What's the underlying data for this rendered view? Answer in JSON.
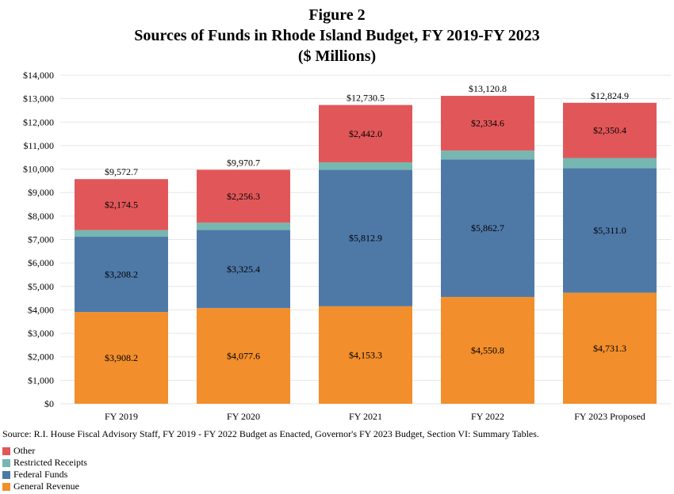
{
  "title": {
    "line1": "Figure 2",
    "line2": "Sources of Funds in Rhode Island Budget, FY 2019-FY 2023",
    "line3": "($ Millions)"
  },
  "source": "Source: R.I. House Fiscal Advisory Staff, FY 2019 - FY 2022 Budget as Enacted, Governor's FY 2023 Budget, Section VI: Summary Tables.",
  "legend": [
    {
      "label": "Other",
      "color": "#e15759"
    },
    {
      "label": "Restricted Receipts",
      "color": "#76b7b2"
    },
    {
      "label": "Federal Funds",
      "color": "#4e79a7"
    },
    {
      "label": "General Revenue",
      "color": "#f28e2b"
    }
  ],
  "chart_data": {
    "type": "bar",
    "stacked": true,
    "categories": [
      "FY 2019",
      "FY 2020",
      "FY 2021",
      "FY 2022",
      "FY 2023 Proposed"
    ],
    "series": [
      {
        "name": "General Revenue",
        "color": "#f28e2b",
        "values": [
          3908.2,
          4077.6,
          4153.3,
          4550.8,
          4731.3
        ],
        "labels": [
          "$3,908.2",
          "$4,077.6",
          "$4,153.3",
          "$4,550.8",
          "$4,731.3"
        ]
      },
      {
        "name": "Federal Funds",
        "color": "#4e79a7",
        "values": [
          3208.2,
          3325.4,
          5812.9,
          5862.7,
          5311.0
        ],
        "labels": [
          "$3,208.2",
          "$3,325.4",
          "$5,812.9",
          "$5,862.7",
          "$5,311.0"
        ]
      },
      {
        "name": "Restricted Receipts",
        "color": "#76b7b2",
        "values": [
          281.8,
          311.4,
          322.3,
          372.7,
          432.2
        ],
        "labels": []
      },
      {
        "name": "Other",
        "color": "#e15759",
        "values": [
          2174.5,
          2256.3,
          2442.0,
          2334.6,
          2350.4
        ],
        "labels": [
          "$2,174.5",
          "$2,256.3",
          "$2,442.0",
          "$2,334.6",
          "$2,350.4"
        ]
      }
    ],
    "totals": [
      "$9,572.7",
      "$9,970.7",
      "$12,730.5",
      "$13,120.8",
      "$12,824.9"
    ],
    "total_values": [
      9572.7,
      9970.7,
      12730.5,
      13120.8,
      12824.9
    ],
    "ylim": [
      0,
      14000
    ],
    "yticks": [
      0,
      1000,
      2000,
      3000,
      4000,
      5000,
      6000,
      7000,
      8000,
      9000,
      10000,
      11000,
      12000,
      13000,
      14000
    ],
    "ytick_labels": [
      "$0",
      "$1,000",
      "$2,000",
      "$3,000",
      "$4,000",
      "$5,000",
      "$6,000",
      "$7,000",
      "$8,000",
      "$9,000",
      "$10,000",
      "$11,000",
      "$12,000",
      "$13,000",
      "$14,000"
    ],
    "grid": true,
    "legend_position": "bottom-left"
  }
}
